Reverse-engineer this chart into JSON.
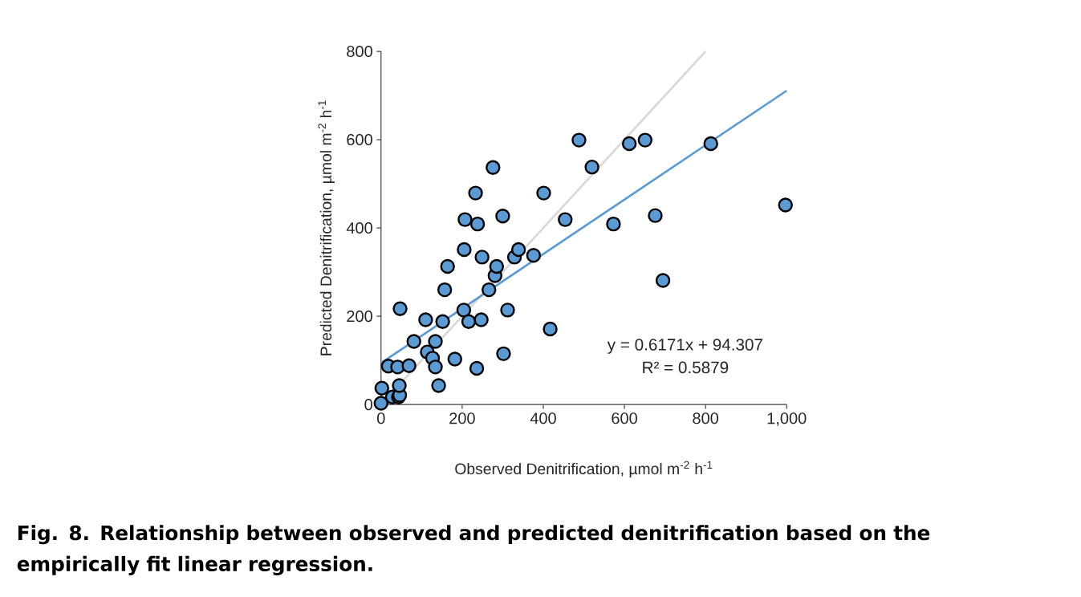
{
  "chart_data": {
    "type": "scatter",
    "xlabel": "Observed Denitrification, µmol m$^{-2}$ h$^{-1}$",
    "ylabel": "Predicted Denitrification, µmol m$^{-2}$ h$^{-1}$",
    "xlim": [
      0,
      1000
    ],
    "ylim": [
      0,
      800
    ],
    "xticks": [
      0,
      200,
      400,
      600,
      800,
      {
        "value": 1000,
        "label": "1,000"
      }
    ],
    "yticks": [
      0,
      200,
      400,
      600,
      800
    ],
    "grid": false,
    "annotations": [
      "y = 0.6171x + 94.307",
      "R² = 0.5879",
      "**Fig. 8.  Relationship between observed and predicted denitrification based on the empirically fit linear regression.**"
    ],
    "series": [
      {
        "type": "line",
        "marker": "none",
        "color": "#d9d9d9",
        "x": [
          0,
          800
        ],
        "values": [
          0,
          800
        ]
      },
      {
        "type": "line",
        "marker": "none",
        "color": "#5b9bd5",
        "x": [
          0,
          1000
        ],
        "values": [
          94,
          711
        ]
      },
      {
        "marker": "circle",
        "color": "#5b9bd5",
        "x": [
          0,
          2,
          28,
          43,
          46,
          45,
          18,
          41,
          69,
          47,
          81,
          110,
          114,
          127,
          134,
          134,
          142,
          152,
          157,
          164,
          182,
          204,
          205,
          207,
          216,
          233,
          236,
          238,
          247,
          249,
          266,
          276,
          281,
          285,
          300,
          302,
          312,
          329,
          339,
          376,
          401,
          417,
          454,
          488,
          520,
          612,
          651,
          813,
          997,
          573,
          676,
          695
        ],
        "values": [
          3,
          37,
          17,
          17,
          21,
          43,
          87,
          85,
          88,
          217,
          143,
          192,
          119,
          105,
          85,
          143,
          43,
          188,
          260,
          313,
          103,
          214,
          351,
          419,
          188,
          479,
          82,
          409,
          192,
          334,
          260,
          537,
          292,
          313,
          427,
          115,
          214,
          334,
          351,
          338,
          479,
          171,
          419,
          599,
          538,
          591,
          599,
          591,
          452,
          409,
          428,
          281
        ]
      }
    ]
  }
}
